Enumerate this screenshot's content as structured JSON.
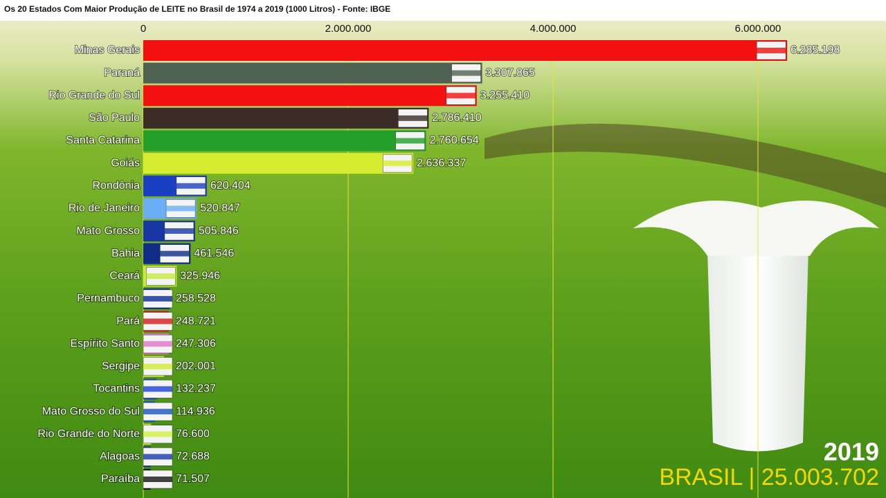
{
  "chart_data": {
    "type": "barh",
    "title": "Os 20 Estados Com Maior Produção de LEITE no Brasil de 1974 a 2019 (1000 Litros) - Fonte: IBGE",
    "categories": [
      "Minas Gerais",
      "Paraná",
      "Rio Grande do Sul",
      "São Paulo",
      "Santa Catarina",
      "Goiás",
      "Rondônia",
      "Rio de Janeiro",
      "Mato Grosso",
      "Bahia",
      "Ceará",
      "Pernambuco",
      "Pará",
      "Espírito Santo",
      "Sergipe",
      "Tocantins",
      "Mato Grosso do Sul",
      "Rio Grande do Norte",
      "Alagoas",
      "Paraíba"
    ],
    "values": [
      6285198,
      3307865,
      3255410,
      2786410,
      2760654,
      2636337,
      620404,
      520847,
      505846,
      461546,
      325946,
      258528,
      248721,
      247306,
      202001,
      132237,
      114936,
      76600,
      72688,
      71507
    ],
    "value_labels": [
      "6.285.198",
      "3.307.865",
      "3.255.410",
      "2.786.410",
      "2.760.654",
      "2.636.337",
      "620.404",
      "520.847",
      "505.846",
      "461.546",
      "325.946",
      "258.528",
      "248.721",
      "247.306",
      "202.001",
      "132.237",
      "114.936",
      "76.600",
      "72.688",
      "71.507"
    ],
    "colors": [
      "#f21010",
      "#4f6150",
      "#f21010",
      "#3b2c26",
      "#22a02a",
      "#d6ec30",
      "#1a3fc0",
      "#6caef5",
      "#1738a2",
      "#102c84",
      "#c4ea3c",
      "#0c2c92",
      "#d41a1a",
      "#e274cc",
      "#cfea32",
      "#1c42d2",
      "#1a52c2",
      "#d2f042",
      "#1a3aaa",
      "#141414"
    ],
    "xlim": [
      0,
      7000000
    ],
    "xticks": [
      0,
      {
        "value": 2000000,
        "label": "2.000.000"
      },
      {
        "value": 4000000,
        "label": "4.000.000"
      },
      {
        "value": 6000000,
        "label": "6.000.000"
      }
    ],
    "grid": true,
    "annotations": [
      "2019",
      "BRASIL | 25.003.702"
    ]
  }
}
